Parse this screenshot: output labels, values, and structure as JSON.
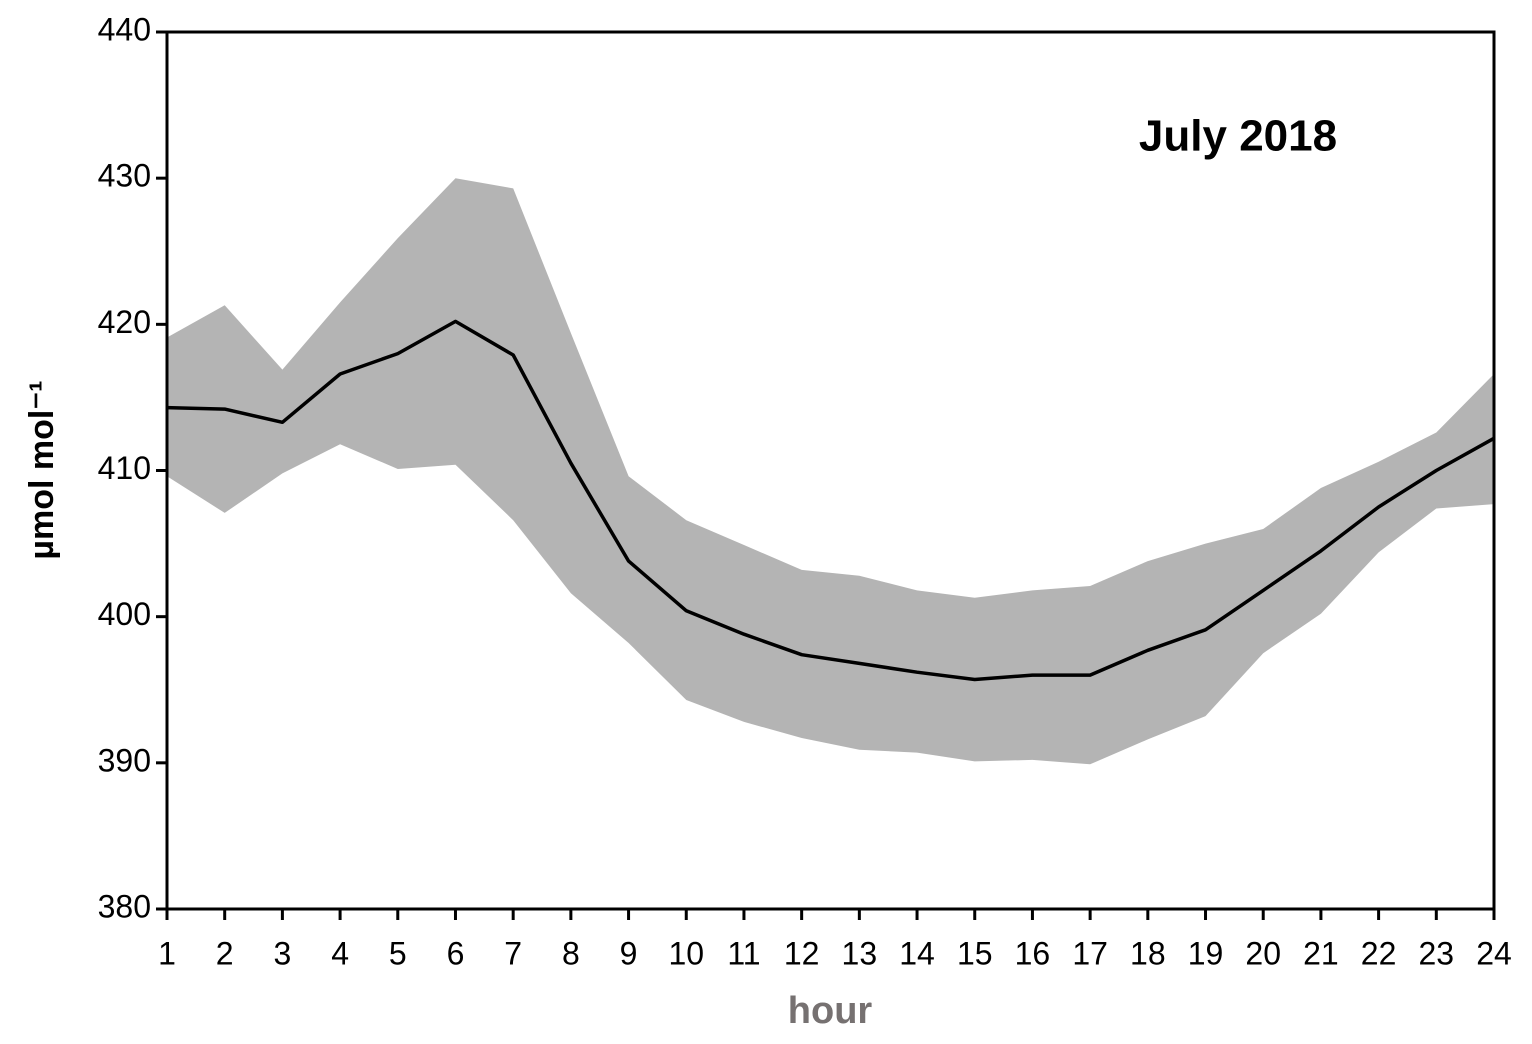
{
  "chart_data": {
    "type": "line",
    "annotation": "July 2018",
    "x_label": "hour",
    "y_label": "µmol mol⁻¹",
    "x": [
      1,
      2,
      3,
      4,
      5,
      6,
      7,
      8,
      9,
      10,
      11,
      12,
      13,
      14,
      15,
      16,
      17,
      18,
      19,
      20,
      21,
      22,
      23,
      24
    ],
    "values": [
      414.3,
      414.2,
      413.3,
      416.6,
      418.0,
      420.2,
      417.9,
      410.5,
      403.8,
      400.4,
      398.8,
      397.4,
      396.8,
      396.2,
      395.7,
      396.0,
      396.0,
      397.7,
      399.1,
      401.8,
      404.5,
      407.5,
      410.0,
      412.2
    ],
    "color": "#000000",
    "band": {
      "upper": [
        419.1,
        421.3,
        416.9,
        421.5,
        425.9,
        430.0,
        429.3,
        419.4,
        409.6,
        406.6,
        404.9,
        403.2,
        402.8,
        401.8,
        401.3,
        401.8,
        402.1,
        403.8,
        405.0,
        406.0,
        408.8,
        410.6,
        412.6,
        416.6
      ],
      "lower": [
        409.6,
        407.1,
        409.8,
        411.8,
        410.1,
        410.4,
        406.6,
        401.6,
        398.2,
        394.3,
        392.8,
        391.7,
        390.9,
        390.7,
        390.1,
        390.2,
        389.9,
        391.6,
        393.2,
        397.5,
        400.2,
        404.4,
        407.4,
        407.7
      ],
      "color": "#b4b4b4"
    },
    "xlim": [
      1,
      24
    ],
    "xticks": [
      1,
      2,
      3,
      4,
      5,
      6,
      7,
      8,
      9,
      10,
      11,
      12,
      13,
      14,
      15,
      16,
      17,
      18,
      19,
      20,
      21,
      22,
      23,
      24
    ],
    "ylim": [
      380,
      440
    ],
    "yticks": [
      380,
      390,
      400,
      410,
      420,
      430,
      440
    ]
  }
}
